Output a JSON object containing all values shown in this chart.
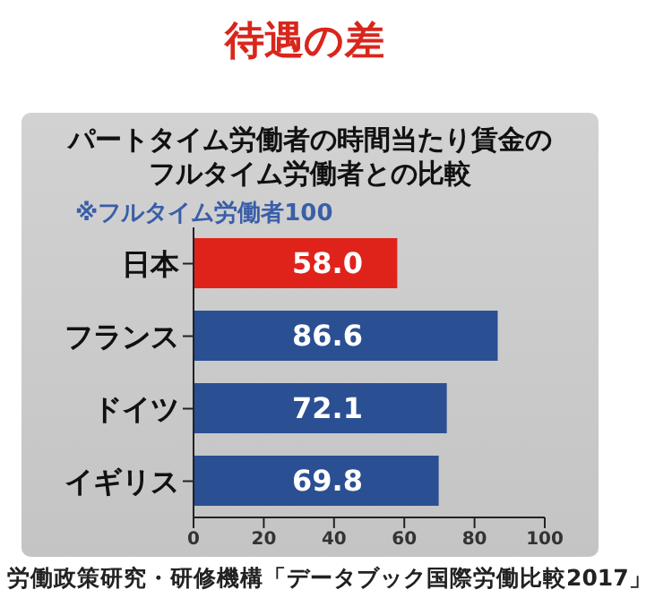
{
  "chart_data": {
    "type": "bar",
    "orientation": "horizontal",
    "title": "待遇の差",
    "subtitle": "パートタイム労働者の時間当たり賃金のフルタイム労働者との比較",
    "categories": [
      "日本",
      "フランス",
      "ドイツ",
      "イギリス"
    ],
    "values": [
      58.0,
      86.6,
      72.1,
      69.8
    ],
    "value_labels": [
      "58.0",
      "86.6",
      "72.1",
      "69.8"
    ],
    "colors": [
      "#e0231a",
      "#2b4f93",
      "#2b4f93",
      "#2b4f93"
    ],
    "xlim": [
      0,
      100
    ],
    "xticks": [
      0,
      20,
      40,
      60,
      80,
      100
    ],
    "grid": false,
    "legend": false,
    "annotations": [
      "※フルタイム労働者100",
      "労働政策研究・研修機構「データブック国際労働比較2017」"
    ]
  }
}
